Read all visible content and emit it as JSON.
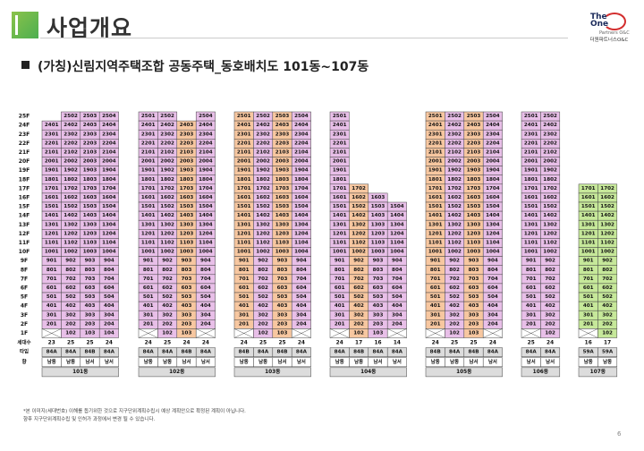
{
  "header": {
    "title": "사업개요"
  },
  "logo": {
    "line1": "The",
    "line2": "One",
    "line3": "Partners O&C",
    "line4": "더원파트너스O&C"
  },
  "subtitle": "(가칭)신림지역주택조합 공동주택_동호배치도 101동~107동",
  "floor_labels": [
    "25F",
    "24F",
    "23F",
    "22F",
    "21F",
    "20F",
    "19F",
    "18F",
    "17F",
    "16F",
    "15F",
    "14F",
    "13F",
    "12F",
    "11F",
    "10F",
    "9F",
    "8F",
    "7F",
    "6F",
    "5F",
    "4F",
    "3F",
    "2F",
    "1F"
  ],
  "row_labels": {
    "units": "세대수",
    "type": "타입",
    "direction": "향"
  },
  "colors": {
    "pink": "#e8bfe8",
    "orange": "#f7c7a0",
    "green": "#c6e89a",
    "blank": "#ffffff",
    "label": "#dcdcdc"
  },
  "buildings": [
    {
      "name": "101동",
      "lines": [
        {
          "top": 24,
          "gone": [],
          "color": "pink"
        },
        {
          "top": 25,
          "gone": [],
          "color": "pink"
        },
        {
          "top": 25,
          "gone": [],
          "color": "pink"
        },
        {
          "top": 25,
          "gone": [],
          "color": "pink"
        }
      ],
      "low": [
        2,
        3,
        4
      ],
      "units": [
        "23",
        "25",
        "25",
        "24"
      ],
      "types": [
        "84A",
        "84A",
        "84B",
        "84A"
      ],
      "dirs": [
        "남동",
        "남동",
        "남서",
        "남서"
      ]
    },
    {
      "name": "102동",
      "lines": [
        {
          "top": 25,
          "gone": [],
          "color": "pink"
        },
        {
          "top": 25,
          "gone": [],
          "color": "pink"
        },
        {
          "top": 24,
          "gone": [],
          "color": "orange"
        },
        {
          "top": 25,
          "gone": [],
          "color": "pink"
        }
      ],
      "low": [
        2,
        3
      ],
      "units": [
        "24",
        "25",
        "24",
        "24"
      ],
      "types": [
        "84A",
        "84A",
        "84B",
        "84A"
      ],
      "dirs": [
        "남동",
        "남동",
        "남서",
        "남서"
      ]
    },
    {
      "name": "103동",
      "lines": [
        {
          "top": 25,
          "gone": [],
          "color": "orange"
        },
        {
          "top": 25,
          "gone": [],
          "color": "pink"
        },
        {
          "top": 25,
          "gone": [],
          "color": "orange"
        },
        {
          "top": 25,
          "gone": [],
          "color": "pink"
        }
      ],
      "low": [
        2,
        3
      ],
      "units": [
        "24",
        "25",
        "25",
        "24"
      ],
      "types": [
        "84B",
        "84A",
        "84B",
        "84A"
      ],
      "dirs": [
        "남동",
        "남동",
        "남서",
        "남서"
      ]
    },
    {
      "name": "104동",
      "lines": [
        {
          "top": 25,
          "gone": [],
          "color": "pink"
        },
        {
          "top": 17,
          "gone": [],
          "color": "orange"
        },
        {
          "top": 16,
          "gone": [],
          "color": "pink"
        },
        {
          "top": 15,
          "gone": [],
          "color": "pink"
        }
      ],
      "low": [
        2,
        3
      ],
      "units": [
        "24",
        "17",
        "16",
        "14"
      ],
      "types": [
        "84A",
        "84B",
        "84A",
        "84A"
      ],
      "dirs": [
        "남동",
        "남동",
        "남서",
        "남서"
      ]
    },
    {
      "name": "105동",
      "lines": [
        {
          "top": 25,
          "gone": [],
          "color": "orange"
        },
        {
          "top": 25,
          "gone": [],
          "color": "pink"
        },
        {
          "top": 25,
          "gone": [],
          "color": "orange"
        },
        {
          "top": 25,
          "gone": [],
          "color": "pink"
        }
      ],
      "low": [
        2,
        3
      ],
      "units": [
        "24",
        "25",
        "25",
        "24"
      ],
      "types": [
        "84B",
        "84A",
        "84B",
        "84A"
      ],
      "dirs": [
        "남동",
        "남동",
        "남서",
        "남서"
      ]
    },
    {
      "name": "106동",
      "lines": [
        {
          "top": 25,
          "gone": [],
          "color": "pink"
        },
        {
          "top": 25,
          "gone": [],
          "color": "pink"
        }
      ],
      "low": [
        2
      ],
      "units": [
        "25",
        "24"
      ],
      "types": [
        "84A",
        "84A"
      ],
      "dirs": [
        "남서",
        "남서"
      ]
    },
    {
      "name": "107동",
      "lines": [
        {
          "top": 17,
          "gone": [],
          "color": "green"
        },
        {
          "top": 17,
          "gone": [],
          "color": "green"
        }
      ],
      "low": [
        2
      ],
      "units": [
        "16",
        "17"
      ],
      "types": [
        "59A",
        "59A"
      ],
      "dirs": [
        "남동",
        "남동"
      ]
    }
  ],
  "notes": [
    "*본 이미지(세대번호) 이해를 돕기위한 것으로 지구단위계획수립시 예상 계획안으로 확정된 계획이 아닙니다.",
    "향후 지구단위계획수립 및 인허가 과정에서 변경 될 수 있습니다."
  ],
  "page_number": "6"
}
